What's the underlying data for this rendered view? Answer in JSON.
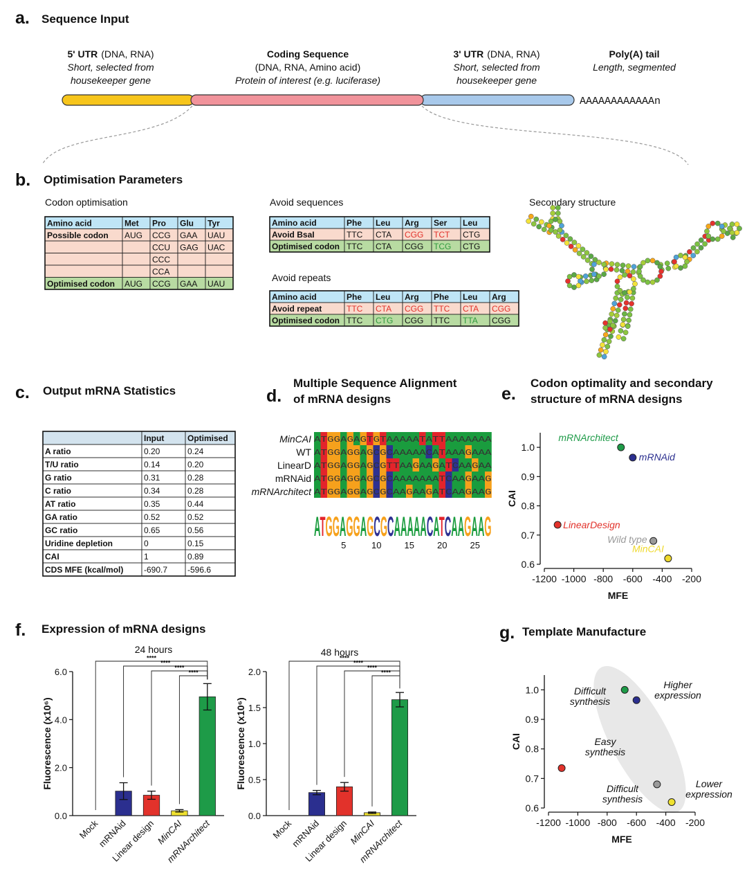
{
  "panel_a": {
    "letter": "a.",
    "title": "Sequence Input",
    "segments": [
      {
        "name": "5' UTR",
        "detail": "(DNA, RNA)",
        "note": [
          "Short, selected from",
          "housekeeper gene"
        ],
        "color": "#f7c51b"
      },
      {
        "name": "Coding Sequence",
        "detail": "(DNA, RNA, Amino acid)",
        "note": [
          "Protein of interest (e.g. luciferase)"
        ],
        "color": "#f1939b"
      },
      {
        "name": "3' UTR",
        "detail": "(DNA, RNA)",
        "note": [
          "Short, selected from",
          "housekeeper gene"
        ],
        "color": "#a8c9eb"
      },
      {
        "name": "Poly(A) tail",
        "note": [
          "Length, segmented"
        ],
        "tail": "AAAAAAAAAAAAn"
      }
    ]
  },
  "panel_b": {
    "letter": "b.",
    "title": "Optimisation Parameters",
    "codon": {
      "heading": "Codon optimisation",
      "table": {
        "header": [
          "Amino acid",
          "Met",
          "Pro",
          "Glu",
          "Tyr"
        ],
        "rows": [
          [
            "Possible codon",
            "AUG",
            "CCG",
            "GAA",
            "UAU"
          ],
          [
            null,
            null,
            "CCU",
            "GAG",
            "UAC"
          ],
          [
            null,
            null,
            "CCC",
            null,
            null
          ],
          [
            null,
            null,
            "CCA",
            null,
            null
          ],
          [
            "Optimised codon",
            "AUG",
            "CCG",
            "GAA",
            "UAU"
          ]
        ]
      }
    },
    "avoid_sequences": {
      "heading": "Avoid sequences",
      "table": {
        "header": [
          "Amino acid",
          "Phe",
          "Leu",
          "Arg",
          "Ser",
          "Leu"
        ],
        "rows": [
          [
            "Avoid BsaI",
            "TTC",
            "CTA",
            "CGG",
            "TCT",
            "CTG"
          ],
          [
            "Optimised codon",
            "TTC",
            "CTA",
            "CGG",
            "TCG",
            "CTG"
          ]
        ]
      }
    },
    "avoid_repeats": {
      "heading": "Avoid repeats",
      "table": {
        "header": [
          "Amino acid",
          "Phe",
          "Leu",
          "Arg",
          "Phe",
          "Leu",
          "Arg"
        ],
        "rows": [
          [
            "Avoid repeat",
            "TTC",
            "CTA",
            "CGG",
            "TTC",
            "CTA",
            "CGG"
          ],
          [
            "Optimised codon",
            "TTC",
            "CTG",
            "CGG",
            "TTC",
            "TTA",
            "CGG"
          ]
        ]
      }
    },
    "structure": {
      "heading": "Secondary structure"
    }
  },
  "panel_c": {
    "letter": "c.",
    "title": "Output mRNA Statistics",
    "table": {
      "header": [
        null,
        "Input",
        "Optimised"
      ],
      "rows": [
        [
          "A ratio",
          "0.20",
          "0.24"
        ],
        [
          "T/U ratio",
          "0.14",
          "0.20"
        ],
        [
          "G ratio",
          "0.31",
          "0.28"
        ],
        [
          "C ratio",
          "0.34",
          "0.28"
        ],
        [
          "AT ratio",
          "0.35",
          "0.44"
        ],
        [
          "GA ratio",
          "0.52",
          "0.52"
        ],
        [
          "GC ratio",
          "0.65",
          "0.56"
        ],
        [
          "Uridine depletion",
          "0",
          "0.15"
        ],
        [
          "CAI",
          "1",
          "0.89"
        ],
        [
          "CDS MFE (kcal/mol)",
          "-690.7",
          "-596.6"
        ]
      ]
    }
  },
  "panel_d": {
    "letter": "d.",
    "title": [
      "Multiple Sequence Alignment",
      "of mRNA designs"
    ],
    "alignment": [
      {
        "name": "MinCAI",
        "sequence": "ATGGAGAGTGTAAAAATATTAAAAAAA"
      },
      {
        "name": "WT",
        "sequence": "ATGGAGGAGCGCAAAAACATAAAGAAA"
      },
      {
        "name": "LinearD",
        "sequence": "ATGGAGGAGCGTTAAGAAGATCAAGAA"
      },
      {
        "name": "mRNAid",
        "sequence": "ATGGAGGAGCGCAAAAAAATCAAGAAG"
      },
      {
        "name": "mRNArchitect",
        "sequence": "ATGGAGGAGCGCAAGAAGATCAAGAAG"
      }
    ],
    "consensus": "ATGGAGGAGCGCAAAAACATCAAGAAG",
    "xticks": [
      5,
      10,
      15,
      20,
      25
    ]
  },
  "chart_data": [
    {
      "letter": "e.",
      "type": "scatter",
      "title": [
        "Codon optimality and secondary",
        "structure of mRNA designs"
      ],
      "x_label": "MFE",
      "y_label": "CAI",
      "xlim": [
        -1200,
        -200
      ],
      "ylim": [
        0.6,
        1.05
      ],
      "xticks": [
        -1200,
        -1000,
        -800,
        -600,
        -400,
        -200
      ],
      "yticks": [
        0.6,
        0.7,
        0.8,
        0.9,
        {
          "value": 1,
          "label": "1.0"
        }
      ],
      "series": [
        {
          "name": "mRNArchitect",
          "color": "#1e9b48",
          "x": [
            -680
          ],
          "values": [
            1.0
          ]
        },
        {
          "name": "mRNAid",
          "color": "#2b2f8f",
          "x": [
            -600
          ],
          "values": [
            0.965
          ]
        },
        {
          "name": "LinearDesign",
          "color": "#e2322b",
          "x": [
            -1110
          ],
          "values": [
            0.735
          ]
        },
        {
          "name": "Wild type",
          "color": "#9a9a9a",
          "x": [
            -460
          ],
          "values": [
            0.68
          ]
        },
        {
          "name": "MinCAI",
          "color": "#efd92c",
          "x": [
            -360
          ],
          "values": [
            0.62
          ]
        }
      ]
    },
    {
      "letter": "f.",
      "type": "bar",
      "title": "Expression of mRNA designs",
      "subtitle": "24 hours",
      "y_label": "Fluorescence (x10⁶)",
      "categories": [
        "Mock",
        "mRNAid",
        "Linear design",
        "MinCAI",
        "mRNArchitect"
      ],
      "values": [
        0,
        1.02,
        0.85,
        0.2,
        4.95
      ],
      "errors": [
        null,
        0.35,
        0.17,
        0.05,
        0.55
      ],
      "colors": [
        "#ffffff",
        "#2b2f8f",
        "#e2322b",
        "#efe12f",
        "#1e9b48"
      ],
      "ylim": [
        0,
        6
      ],
      "yticks": [
        {
          "value": 0,
          "label": "0.0"
        },
        {
          "value": 2,
          "label": "2.0"
        },
        {
          "value": 4,
          "label": "4.0"
        },
        {
          "value": 6,
          "label": "6.0"
        }
      ],
      "significance": [
        "****",
        "****",
        "****",
        "****"
      ]
    },
    {
      "type": "bar",
      "subtitle": "48 hours",
      "y_label": "Fluorescence (x10⁶)",
      "categories": [
        "Mock",
        "mRNAid",
        "Linear design",
        "MinCAI",
        "mRNArchitect"
      ],
      "values": [
        0,
        0.32,
        0.4,
        0.04,
        1.61
      ],
      "errors": [
        null,
        0.03,
        0.06,
        0.01,
        0.1
      ],
      "colors": [
        "#ffffff",
        "#2b2f8f",
        "#e2322b",
        "#efe12f",
        "#1e9b48"
      ],
      "ylim": [
        0,
        2
      ],
      "yticks": [
        {
          "value": 0,
          "label": "0.0"
        },
        {
          "value": 0.5,
          "label": "0.5"
        },
        {
          "value": 1,
          "label": "1.0"
        },
        {
          "value": 1.5,
          "label": "1.5"
        },
        {
          "value": 2,
          "label": "2.0"
        }
      ],
      "significance": [
        "****",
        "****",
        "****",
        "****"
      ]
    },
    {
      "letter": "g.",
      "type": "scatter",
      "title": "Template Manufacture",
      "x_label": "MFE",
      "y_label": "CAI",
      "xlim": [
        -1200,
        -200
      ],
      "ylim": [
        0.6,
        1.05
      ],
      "xticks": [
        -1200,
        -1000,
        -800,
        -600,
        -400,
        -200
      ],
      "yticks": [
        0.6,
        0.7,
        0.8,
        0.9,
        {
          "value": 1,
          "label": "1.0"
        }
      ],
      "series": [
        {
          "color": "#1e9b48",
          "x": [
            -680
          ],
          "values": [
            1.0
          ]
        },
        {
          "color": "#2b2f8f",
          "x": [
            -600
          ],
          "values": [
            0.965
          ]
        },
        {
          "color": "#e2322b",
          "x": [
            -1110
          ],
          "values": [
            0.735
          ]
        },
        {
          "color": "#9a9a9a",
          "x": [
            -460
          ],
          "values": [
            0.68
          ]
        },
        {
          "color": "#efe12f",
          "x": [
            -360
          ],
          "values": [
            0.62
          ]
        }
      ],
      "annotations": [
        [
          "Difficult",
          "synthesis"
        ],
        [
          "Higher",
          "expression"
        ],
        [
          "Easy",
          "synthesis"
        ],
        [
          "Difficult",
          "synthesis"
        ],
        [
          "Lower",
          "expression"
        ]
      ]
    }
  ]
}
